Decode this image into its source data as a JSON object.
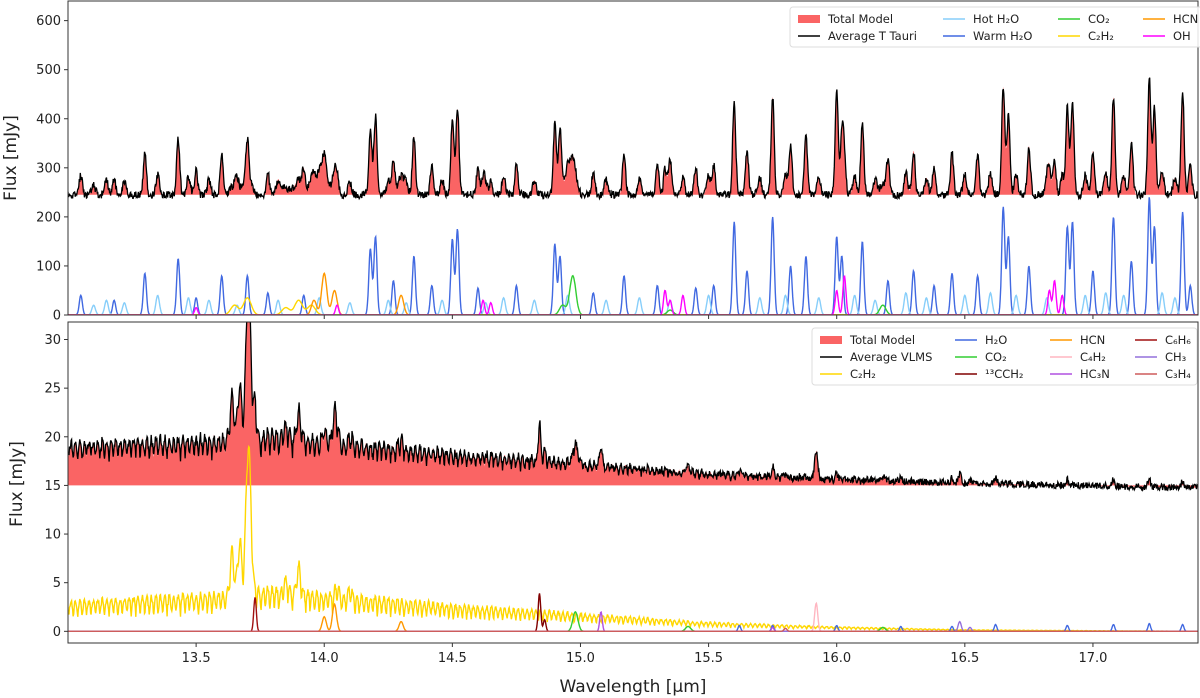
{
  "chart_data": [
    {
      "type": "line",
      "panel": "top",
      "ylabel": "Flux [mJy]",
      "xlim": [
        13.0,
        17.41
      ],
      "ylim": [
        0,
        640
      ],
      "yticks": [
        0,
        100,
        200,
        300,
        400,
        500,
        600
      ],
      "continuum": 245,
      "legend_placement": "top-right",
      "legend": [
        {
          "label": "Total Model",
          "color": "#fa6464",
          "kind": "fill"
        },
        {
          "label": "Average T Tauri",
          "color": "#000000",
          "kind": "line"
        },
        {
          "label": "Hot H₂O",
          "color": "#87cefa",
          "kind": "line"
        },
        {
          "label": "Warm H₂O",
          "color": "#4169e1",
          "kind": "line"
        },
        {
          "label": "CO₂",
          "color": "#32cd32",
          "kind": "line"
        },
        {
          "label": "C₂H₂",
          "color": "#ffd700",
          "kind": "line"
        },
        {
          "label": "HCN",
          "color": "#ff9800",
          "kind": "line"
        },
        {
          "label": "OH",
          "color": "#ff00ff",
          "kind": "line"
        }
      ],
      "series": [
        {
          "name": "Warm H₂O",
          "color": "#4169e1",
          "width": 0.006,
          "peaks": [
            [
              13.05,
              40
            ],
            [
              13.18,
              30
            ],
            [
              13.3,
              85
            ],
            [
              13.43,
              115
            ],
            [
              13.5,
              35
            ],
            [
              13.6,
              80
            ],
            [
              13.7,
              80
            ],
            [
              13.78,
              45
            ],
            [
              13.92,
              40
            ],
            [
              14.18,
              135
            ],
            [
              14.2,
              160
            ],
            [
              14.27,
              70
            ],
            [
              14.35,
              120
            ],
            [
              14.42,
              60
            ],
            [
              14.5,
              155
            ],
            [
              14.52,
              175
            ],
            [
              14.6,
              55
            ],
            [
              14.75,
              60
            ],
            [
              14.9,
              145
            ],
            [
              14.92,
              120
            ],
            [
              15.05,
              45
            ],
            [
              15.17,
              80
            ],
            [
              15.3,
              60
            ],
            [
              15.45,
              55
            ],
            [
              15.52,
              60
            ],
            [
              15.6,
              190
            ],
            [
              15.65,
              90
            ],
            [
              15.75,
              200
            ],
            [
              15.82,
              100
            ],
            [
              15.88,
              120
            ],
            [
              16.0,
              160
            ],
            [
              16.02,
              120
            ],
            [
              16.1,
              150
            ],
            [
              16.2,
              70
            ],
            [
              16.3,
              90
            ],
            [
              16.38,
              60
            ],
            [
              16.45,
              85
            ],
            [
              16.55,
              80
            ],
            [
              16.65,
              220
            ],
            [
              16.67,
              160
            ],
            [
              16.75,
              100
            ],
            [
              16.9,
              180
            ],
            [
              16.92,
              190
            ],
            [
              17.0,
              90
            ],
            [
              17.08,
              200
            ],
            [
              17.15,
              110
            ],
            [
              17.22,
              240
            ],
            [
              17.24,
              180
            ],
            [
              17.35,
              210
            ],
            [
              17.38,
              60
            ]
          ]
        },
        {
          "name": "Hot H₂O",
          "color": "#87cefa",
          "width": 0.007,
          "peaks": [
            [
              13.1,
              20
            ],
            [
              13.15,
              30
            ],
            [
              13.22,
              25
            ],
            [
              13.35,
              40
            ],
            [
              13.47,
              35
            ],
            [
              13.55,
              30
            ],
            [
              13.66,
              20
            ],
            [
              13.82,
              30
            ],
            [
              13.98,
              35
            ],
            [
              14.1,
              25
            ],
            [
              14.25,
              30
            ],
            [
              14.32,
              25
            ],
            [
              14.46,
              30
            ],
            [
              14.63,
              25
            ],
            [
              14.7,
              35
            ],
            [
              14.82,
              30
            ],
            [
              14.95,
              40
            ],
            [
              15.1,
              30
            ],
            [
              15.23,
              35
            ],
            [
              15.35,
              30
            ],
            [
              15.5,
              40
            ],
            [
              15.7,
              35
            ],
            [
              15.8,
              40
            ],
            [
              15.93,
              35
            ],
            [
              16.07,
              40
            ],
            [
              16.15,
              30
            ],
            [
              16.27,
              45
            ],
            [
              16.35,
              35
            ],
            [
              16.5,
              40
            ],
            [
              16.6,
              45
            ],
            [
              16.7,
              40
            ],
            [
              16.82,
              35
            ],
            [
              16.97,
              40
            ],
            [
              17.05,
              45
            ],
            [
              17.12,
              40
            ],
            [
              17.27,
              45
            ],
            [
              17.32,
              35
            ]
          ]
        },
        {
          "name": "CO₂",
          "color": "#32cd32",
          "width": 0.012,
          "peaks": [
            [
              14.97,
              80
            ],
            [
              14.93,
              20
            ],
            [
              15.35,
              10
            ],
            [
              16.18,
              20
            ]
          ]
        },
        {
          "name": "C₂H₂",
          "color": "#ffd700",
          "width": 0.015,
          "peaks": [
            [
              13.7,
              35
            ],
            [
              13.65,
              20
            ],
            [
              13.9,
              30
            ],
            [
              13.95,
              20
            ],
            [
              13.85,
              15
            ]
          ]
        },
        {
          "name": "HCN",
          "color": "#ff9800",
          "width": 0.01,
          "peaks": [
            [
              14.0,
              85
            ],
            [
              14.04,
              50
            ],
            [
              13.96,
              30
            ],
            [
              14.3,
              40
            ]
          ]
        },
        {
          "name": "OH",
          "color": "#ff00ff",
          "width": 0.006,
          "peaks": [
            [
              13.5,
              15
            ],
            [
              14.05,
              20
            ],
            [
              14.62,
              30
            ],
            [
              14.65,
              25
            ],
            [
              15.33,
              50
            ],
            [
              15.4,
              40
            ],
            [
              15.35,
              30
            ],
            [
              16.03,
              80
            ],
            [
              16.0,
              50
            ],
            [
              16.83,
              50
            ],
            [
              16.85,
              70
            ],
            [
              16.88,
              40
            ]
          ]
        }
      ]
    },
    {
      "type": "line",
      "panel": "bottom",
      "xlabel": "Wavelength [μm]",
      "ylabel": "Flux [mJy]",
      "xlim": [
        13.0,
        17.41
      ],
      "xticks": [
        13.5,
        14.0,
        14.5,
        15.0,
        15.5,
        16.0,
        16.5,
        17.0
      ],
      "ylim": [
        -1.2,
        31.8
      ],
      "yticks": [
        0,
        5,
        10,
        15,
        20,
        25,
        30
      ],
      "continuum": 15,
      "legend_placement": "top-right",
      "legend": [
        {
          "label": "Total Model",
          "color": "#fa6464",
          "kind": "fill"
        },
        {
          "label": "Average VLMS",
          "color": "#000000",
          "kind": "line"
        },
        {
          "label": "C₂H₂",
          "color": "#ffd700",
          "kind": "line"
        },
        {
          "label": "H₂O",
          "color": "#4169e1",
          "kind": "line"
        },
        {
          "label": "CO₂",
          "color": "#32cd32",
          "kind": "line"
        },
        {
          "label": "¹³CCH₂",
          "color": "#800000",
          "kind": "line"
        },
        {
          "label": "HCN",
          "color": "#ff9800",
          "kind": "line"
        },
        {
          "label": "C₄H₂",
          "color": "#ffb6c1",
          "kind": "line"
        },
        {
          "label": "HC₃N",
          "color": "#b050e0",
          "kind": "line"
        },
        {
          "label": "C₆H₆",
          "color": "#a01010",
          "kind": "line"
        },
        {
          "label": "CH₃",
          "color": "#9370db",
          "kind": "line"
        },
        {
          "label": "C₃H₄",
          "color": "#cd5c5c",
          "kind": "line"
        }
      ],
      "series": [
        {
          "name": "C₂H₂",
          "color": "#ffd700",
          "width": 0.008,
          "pseudo_continuum": [
            [
              13.0,
              2.0
            ],
            [
              13.6,
              2.6
            ],
            [
              13.72,
              3.0
            ],
            [
              14.0,
              2.6
            ],
            [
              14.5,
              1.8
            ],
            [
              15.0,
              1.2
            ],
            [
              15.5,
              0.6
            ],
            [
              16.0,
              0.3
            ],
            [
              16.5,
              0.1
            ],
            [
              17.41,
              0.0
            ]
          ],
          "peaks": [
            [
              13.7,
              10.5
            ],
            [
              13.71,
              8
            ],
            [
              13.67,
              5.5
            ],
            [
              13.64,
              4.5
            ],
            [
              13.9,
              3
            ],
            [
              13.85,
              1.5
            ],
            [
              14.05,
              1.2
            ],
            [
              14.1,
              1.0
            ]
          ]
        },
        {
          "name": "H₂O",
          "color": "#4169e1",
          "width": 0.005,
          "peaks": [
            [
              15.62,
              0.6
            ],
            [
              15.75,
              0.6
            ],
            [
              16.0,
              0.6
            ],
            [
              16.25,
              0.5
            ],
            [
              16.45,
              0.5
            ],
            [
              16.62,
              0.7
            ],
            [
              16.9,
              0.6
            ],
            [
              17.08,
              0.7
            ],
            [
              17.22,
              0.8
            ],
            [
              17.35,
              0.7
            ]
          ]
        },
        {
          "name": "CO₂",
          "color": "#32cd32",
          "width": 0.01,
          "peaks": [
            [
              14.98,
              2.0
            ],
            [
              15.42,
              0.5
            ],
            [
              16.18,
              0.4
            ]
          ]
        },
        {
          "name": "¹³CCH₂",
          "color": "#800000",
          "width": 0.005,
          "peaks": [
            [
              14.84,
              3.9
            ],
            [
              14.86,
              1.2
            ]
          ]
        },
        {
          "name": "HCN",
          "color": "#ff9800",
          "width": 0.008,
          "peaks": [
            [
              14.04,
              2.8
            ],
            [
              14.0,
              1.5
            ],
            [
              14.3,
              1.0
            ]
          ]
        },
        {
          "name": "C₄H₂",
          "color": "#ffb6c1",
          "width": 0.006,
          "peaks": [
            [
              15.92,
              2.9
            ]
          ]
        },
        {
          "name": "HC₃N",
          "color": "#b050e0",
          "width": 0.005,
          "peaks": [
            [
              15.08,
              2.0
            ],
            [
              15.75,
              0.4
            ]
          ]
        },
        {
          "name": "C₆H₆",
          "color": "#a01010",
          "width": 0.005,
          "peaks": [
            [
              13.73,
              3.5
            ]
          ]
        },
        {
          "name": "CH₃",
          "color": "#9370db",
          "width": 0.006,
          "peaks": [
            [
              16.48,
              1.0
            ],
            [
              16.52,
              0.4
            ]
          ]
        },
        {
          "name": "C₃H₄",
          "color": "#cd5c5c",
          "width": 0.006,
          "peaks": [
            [
              15.8,
              0.3
            ]
          ]
        }
      ]
    }
  ]
}
